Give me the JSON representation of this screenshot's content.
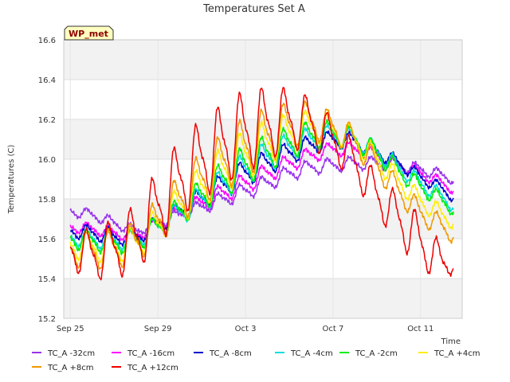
{
  "chart_data": {
    "type": "line",
    "title": "Temperatures Set A",
    "xlabel": "Time",
    "ylabel": "Temperatures (C)",
    "badge": "WP_met",
    "x_ticks": [
      "Sep 25",
      "Sep 29",
      "Oct 3",
      "Oct 7",
      "Oct 11"
    ],
    "y_ticks": [
      "15.2",
      "15.4",
      "15.6",
      "15.8",
      "16.0",
      "16.2",
      "16.4",
      "16.6"
    ],
    "xlim": [
      -0.3,
      17.9
    ],
    "ylim": [
      15.2,
      16.6
    ],
    "x_unit": "days since Sep 25",
    "grid": true,
    "legend_placement": "bottom",
    "series": [
      {
        "name": "TC_A -32cm",
        "color": "#9933ee",
        "base": [
          [
            0,
            15.74
          ],
          [
            1,
            15.72
          ],
          [
            2,
            15.68
          ],
          [
            3,
            15.64
          ],
          [
            4,
            15.68
          ],
          [
            5,
            15.72
          ],
          [
            6,
            15.76
          ],
          [
            7,
            15.8
          ],
          [
            8,
            15.84
          ],
          [
            9,
            15.88
          ],
          [
            10,
            15.93
          ],
          [
            11,
            15.96
          ],
          [
            12,
            15.97
          ],
          [
            13,
            15.98
          ],
          [
            14,
            15.98
          ],
          [
            15,
            15.97
          ],
          [
            16,
            15.95
          ],
          [
            17,
            15.92
          ],
          [
            17.5,
            15.9
          ]
        ],
        "amp": [
          [
            0,
            0.03
          ],
          [
            4,
            0.03
          ],
          [
            8,
            0.05
          ],
          [
            12,
            0.04
          ],
          [
            17.5,
            0.03
          ]
        ]
      },
      {
        "name": "TC_A -16cm",
        "color": "#ff00ff",
        "base": [
          [
            0,
            15.66
          ],
          [
            1,
            15.65
          ],
          [
            2,
            15.63
          ],
          [
            3,
            15.62
          ],
          [
            4,
            15.67
          ],
          [
            5,
            15.73
          ],
          [
            6,
            15.78
          ],
          [
            7,
            15.83
          ],
          [
            8,
            15.88
          ],
          [
            9,
            15.93
          ],
          [
            10,
            15.98
          ],
          [
            11,
            16.02
          ],
          [
            12,
            16.05
          ],
          [
            13,
            16.05
          ],
          [
            14,
            16.02
          ],
          [
            15,
            15.97
          ],
          [
            16,
            15.93
          ],
          [
            17,
            15.88
          ],
          [
            17.5,
            15.85
          ]
        ],
        "amp": [
          [
            0,
            0.03
          ],
          [
            4,
            0.04
          ],
          [
            8,
            0.06
          ],
          [
            12,
            0.04
          ],
          [
            17.5,
            0.03
          ]
        ]
      },
      {
        "name": "TC_A -8cm",
        "color": "#0000cc",
        "base": [
          [
            0,
            15.64
          ],
          [
            1,
            15.63
          ],
          [
            2,
            15.61
          ],
          [
            3,
            15.61
          ],
          [
            4,
            15.67
          ],
          [
            5,
            15.74
          ],
          [
            6,
            15.8
          ],
          [
            7,
            15.87
          ],
          [
            8,
            15.93
          ],
          [
            9,
            15.98
          ],
          [
            10,
            16.03
          ],
          [
            11,
            16.07
          ],
          [
            12,
            16.1
          ],
          [
            13,
            16.09
          ],
          [
            14,
            16.04
          ],
          [
            15,
            15.98
          ],
          [
            16,
            15.91
          ],
          [
            17,
            15.85
          ],
          [
            17.5,
            15.81
          ]
        ],
        "amp": [
          [
            0,
            0.04
          ],
          [
            4,
            0.05
          ],
          [
            8,
            0.08
          ],
          [
            12,
            0.05
          ],
          [
            17.5,
            0.03
          ]
        ]
      },
      {
        "name": "TC_A -4cm",
        "color": "#00dddd",
        "base": [
          [
            0,
            15.61
          ],
          [
            1,
            15.6
          ],
          [
            2,
            15.59
          ],
          [
            3,
            15.6
          ],
          [
            4,
            15.66
          ],
          [
            5,
            15.73
          ],
          [
            6,
            15.8
          ],
          [
            7,
            15.88
          ],
          [
            8,
            15.95
          ],
          [
            9,
            16.01
          ],
          [
            10,
            16.06
          ],
          [
            11,
            16.1
          ],
          [
            12,
            16.12
          ],
          [
            13,
            16.1
          ],
          [
            14,
            16.04
          ],
          [
            15,
            15.96
          ],
          [
            16,
            15.88
          ],
          [
            17,
            15.81
          ],
          [
            17.5,
            15.77
          ]
        ],
        "amp": [
          [
            0,
            0.05
          ],
          [
            4,
            0.06
          ],
          [
            8,
            0.1
          ],
          [
            12,
            0.06
          ],
          [
            17.5,
            0.04
          ]
        ]
      },
      {
        "name": "TC_A -2cm",
        "color": "#00ee00",
        "base": [
          [
            0,
            15.6
          ],
          [
            1,
            15.59
          ],
          [
            2,
            15.58
          ],
          [
            3,
            15.59
          ],
          [
            4,
            15.66
          ],
          [
            5,
            15.74
          ],
          [
            6,
            15.82
          ],
          [
            7,
            15.9
          ],
          [
            8,
            15.97
          ],
          [
            9,
            16.03
          ],
          [
            10,
            16.08
          ],
          [
            11,
            16.12
          ],
          [
            12,
            16.13
          ],
          [
            13,
            16.1
          ],
          [
            14,
            16.03
          ],
          [
            15,
            15.94
          ],
          [
            16,
            15.86
          ],
          [
            17,
            15.79
          ],
          [
            17.5,
            15.75
          ]
        ],
        "amp": [
          [
            0,
            0.06
          ],
          [
            4,
            0.07
          ],
          [
            8,
            0.12
          ],
          [
            12,
            0.07
          ],
          [
            17.5,
            0.04
          ]
        ]
      },
      {
        "name": "TC_A +4cm",
        "color": "#ffee00",
        "base": [
          [
            0,
            15.57
          ],
          [
            1,
            15.56
          ],
          [
            2,
            15.56
          ],
          [
            3,
            15.58
          ],
          [
            4,
            15.67
          ],
          [
            5,
            15.77
          ],
          [
            6,
            15.86
          ],
          [
            7,
            15.95
          ],
          [
            8,
            16.02
          ],
          [
            9,
            16.08
          ],
          [
            10,
            16.13
          ],
          [
            11,
            16.16
          ],
          [
            12,
            16.15
          ],
          [
            13,
            16.1
          ],
          [
            14,
            16.0
          ],
          [
            15,
            15.89
          ],
          [
            16,
            15.79
          ],
          [
            17,
            15.72
          ],
          [
            17.5,
            15.69
          ]
        ],
        "amp": [
          [
            0,
            0.08
          ],
          [
            4,
            0.1
          ],
          [
            8,
            0.15
          ],
          [
            12,
            0.08
          ],
          [
            17.5,
            0.05
          ]
        ]
      },
      {
        "name": "TC_A +8cm",
        "color": "#ee9900",
        "base": [
          [
            0,
            15.55
          ],
          [
            1,
            15.54
          ],
          [
            2,
            15.55
          ],
          [
            3,
            15.58
          ],
          [
            4,
            15.69
          ],
          [
            5,
            15.8
          ],
          [
            6,
            15.9
          ],
          [
            7,
            15.99
          ],
          [
            8,
            16.06
          ],
          [
            9,
            16.12
          ],
          [
            10,
            16.17
          ],
          [
            11,
            16.19
          ],
          [
            12,
            16.16
          ],
          [
            13,
            16.09
          ],
          [
            14,
            15.97
          ],
          [
            15,
            15.84
          ],
          [
            16,
            15.73
          ],
          [
            17,
            15.66
          ],
          [
            17.5,
            15.63
          ]
        ],
        "amp": [
          [
            0,
            0.1
          ],
          [
            4,
            0.13
          ],
          [
            8,
            0.18
          ],
          [
            12,
            0.09
          ],
          [
            17.5,
            0.06
          ]
        ]
      },
      {
        "name": "TC_A +12cm",
        "color": "#ee0000",
        "base": [
          [
            0,
            15.55
          ],
          [
            1,
            15.52
          ],
          [
            2,
            15.55
          ],
          [
            3,
            15.6
          ],
          [
            4,
            15.76
          ],
          [
            5,
            15.9
          ],
          [
            6,
            16.0
          ],
          [
            7,
            16.08
          ],
          [
            8,
            16.14
          ],
          [
            9,
            16.18
          ],
          [
            10,
            16.2
          ],
          [
            11,
            16.18
          ],
          [
            12,
            16.1
          ],
          [
            13,
            15.98
          ],
          [
            14,
            15.82
          ],
          [
            15,
            15.7
          ],
          [
            16,
            15.58
          ],
          [
            17,
            15.48
          ],
          [
            17.5,
            15.48
          ]
        ],
        "amp": [
          [
            0,
            0.12
          ],
          [
            4,
            0.22
          ],
          [
            8,
            0.24
          ],
          [
            12,
            0.12
          ],
          [
            14,
            0.12
          ],
          [
            16,
            0.16
          ],
          [
            17.5,
            0.06
          ]
        ]
      }
    ]
  }
}
